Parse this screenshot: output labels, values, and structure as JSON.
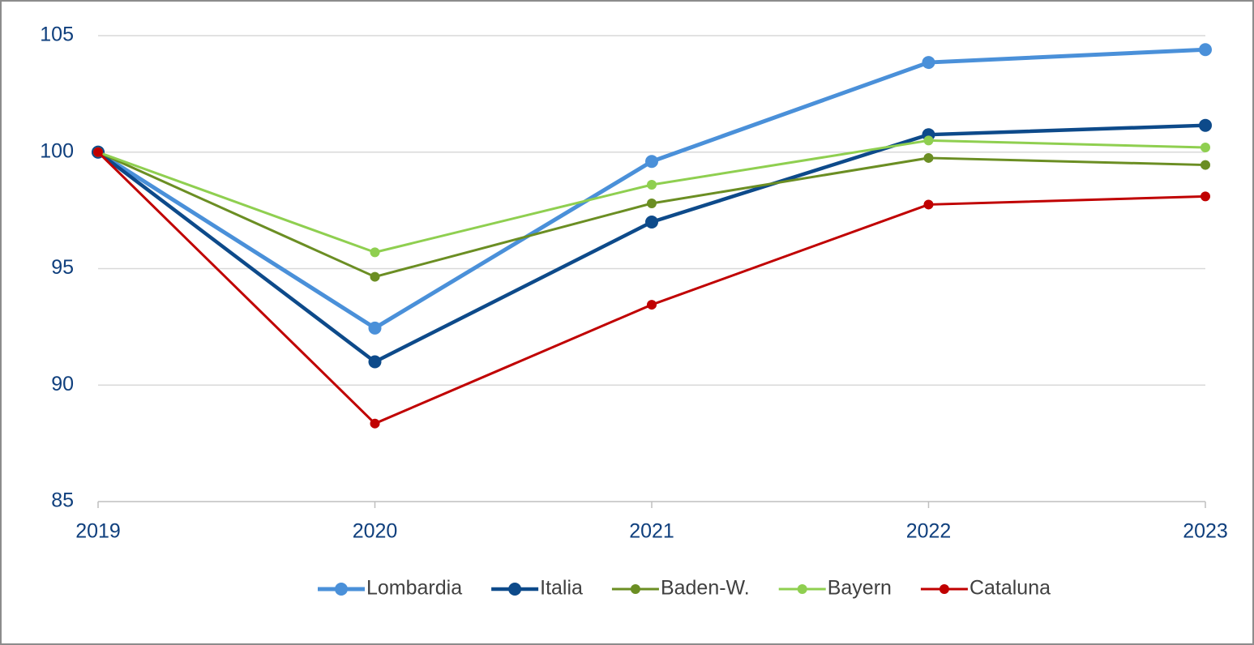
{
  "chart_data": {
    "type": "line",
    "categories": [
      "2019",
      "2020",
      "2021",
      "2022",
      "2023"
    ],
    "series": [
      {
        "name": "Lombardia",
        "color": "#4a90d9",
        "values": [
          100,
          92.45,
          99.6,
          103.85,
          104.4
        ]
      },
      {
        "name": "Italia",
        "color": "#0d4a8a",
        "values": [
          100,
          91.0,
          97.0,
          100.75,
          101.15
        ]
      },
      {
        "name": "Baden-W.",
        "color": "#6b8e23",
        "values": [
          100,
          94.65,
          97.8,
          99.75,
          99.45
        ]
      },
      {
        "name": "Bayern",
        "color": "#8fcf50",
        "values": [
          100,
          95.7,
          98.6,
          100.5,
          100.2
        ]
      },
      {
        "name": "Cataluna",
        "color": "#c00000",
        "values": [
          100,
          88.35,
          93.45,
          97.75,
          98.1
        ]
      }
    ],
    "ylim": [
      85,
      105
    ],
    "yticks": [
      85,
      90,
      95,
      100,
      105
    ],
    "grid": true,
    "legend": "bottom"
  }
}
